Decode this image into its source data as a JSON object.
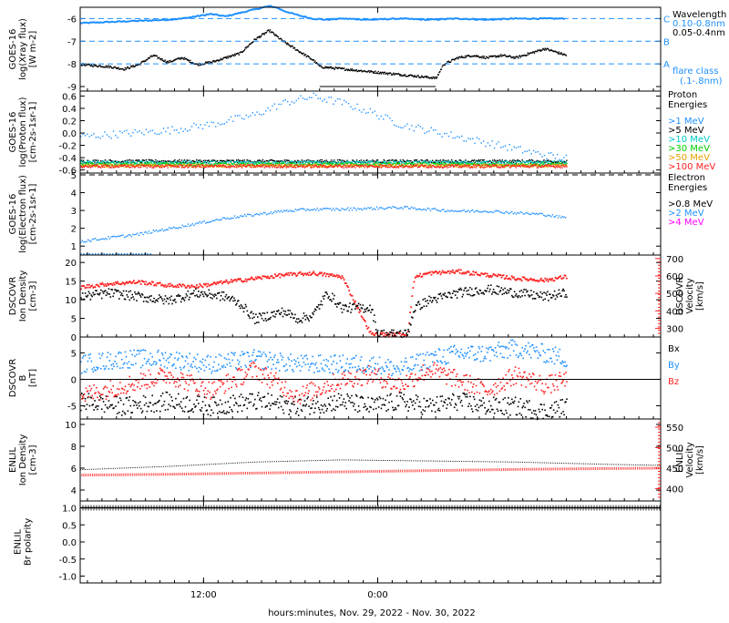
{
  "chart_data": [
    {
      "type": "line",
      "panel": "goes-xray",
      "ylabel": [
        "GOES-16",
        "log(Xray flux)",
        "[W m-2]"
      ],
      "yticks": [
        "-6",
        "-7",
        "-8",
        "-9"
      ],
      "ylim": [
        -9.2,
        -5.5
      ],
      "flare_classes": [
        {
          "label": "C",
          "value": -6
        },
        {
          "label": "B",
          "value": -7
        },
        {
          "label": "A",
          "value": -8
        }
      ],
      "legend_title": "Wavelength",
      "series": [
        {
          "name": "0.10-0.8nm",
          "color": "#1e90ff",
          "x": [
            0,
            2,
            4,
            6,
            7,
            8,
            8.5,
            9,
            10,
            11,
            12,
            13,
            13.5,
            14,
            15,
            16,
            17,
            18,
            20,
            22,
            24,
            26,
            28,
            30,
            32,
            33.5
          ],
          "y": [
            -6.2,
            -6.15,
            -6.1,
            -6.05,
            -6.0,
            -5.9,
            -5.85,
            -5.8,
            -5.9,
            -5.75,
            -5.6,
            -5.45,
            -5.5,
            -5.65,
            -5.85,
            -6.0,
            -6.05,
            -6.0,
            -6.05,
            -6.0,
            -6.05,
            -6.0,
            -6.05,
            -6.0,
            -6.0,
            -6.0
          ]
        },
        {
          "name": "0.05-0.4nm",
          "color": "#000000",
          "x": [
            0,
            1,
            2,
            3,
            4,
            5,
            6,
            7,
            8,
            9,
            10,
            11,
            12,
            13,
            14,
            15,
            16,
            16.5,
            24.5,
            25,
            26,
            27,
            28,
            29,
            30,
            31,
            32,
            33.5
          ],
          "y": [
            -8.0,
            -8.05,
            -8.1,
            -8.2,
            -8.0,
            -7.6,
            -7.9,
            -7.7,
            -8.0,
            -7.9,
            -7.7,
            -7.5,
            -6.9,
            -6.5,
            -7.0,
            -7.4,
            -7.8,
            -8.1,
            -8.6,
            -8.0,
            -7.7,
            -7.6,
            -7.7,
            -7.6,
            -7.7,
            -7.5,
            -7.3,
            -7.6
          ]
        }
      ],
      "gap_line_y": -9.0,
      "extra_labels": [
        "flare class",
        "(.1-.8nm)"
      ]
    },
    {
      "type": "scatter",
      "panel": "goes-proton",
      "ylabel": [
        "GOES-16",
        "log(Proton flux)",
        "[cm-2s-1sr-1]"
      ],
      "yticks": [
        "0.6",
        "0.4",
        "0.2",
        "0.0",
        "-0.2",
        "-0.4",
        "-0.6"
      ],
      "ylim": [
        -0.65,
        0.68
      ],
      "legend_title": [
        "Proton",
        "Energies"
      ],
      "series": [
        {
          "name": ">1 MeV",
          "color": "#1e90ff",
          "x": [
            0,
            3,
            6,
            9,
            12,
            14,
            16,
            18,
            20,
            22,
            24,
            26,
            28,
            30,
            32,
            33.5
          ],
          "y": [
            -0.05,
            0.0,
            0.05,
            0.15,
            0.3,
            0.5,
            0.6,
            0.5,
            0.35,
            0.15,
            0.05,
            -0.05,
            -0.15,
            -0.25,
            -0.35,
            -0.4
          ]
        },
        {
          "name": ">5 MeV",
          "color": "#000000",
          "x": [
            0,
            33.5
          ],
          "y": [
            -0.45,
            -0.45
          ]
        },
        {
          "name": ">10 MeV",
          "color": "#00c8c8",
          "x": [
            0,
            33.5
          ],
          "y": [
            -0.47,
            -0.47
          ]
        },
        {
          "name": ">30 MeV",
          "color": "#00cc00",
          "x": [
            0,
            33.5
          ],
          "y": [
            -0.5,
            -0.5
          ]
        },
        {
          "name": ">50 MeV",
          "color": "#e8a000",
          "x": [
            0,
            33.5
          ],
          "y": [
            -0.52,
            -0.52
          ]
        },
        {
          "name": ">100 MeV",
          "color": "#ff2020",
          "x": [
            0,
            33.5
          ],
          "y": [
            -0.53,
            -0.53
          ]
        }
      ]
    },
    {
      "type": "scatter",
      "panel": "goes-electron",
      "ylabel": [
        "GOES-16",
        "log(Electron flux)",
        "[cm-2s-1sr-1]"
      ],
      "yticks": [
        "5",
        "4",
        "3",
        "2",
        "1"
      ],
      "ylim": [
        0.5,
        5.1
      ],
      "legend_title": [
        "Electron",
        "Energies"
      ],
      "ref_line": 5,
      "series": [
        {
          "name": ">0.8 MeV",
          "color": "#000000",
          "x": [],
          "y": []
        },
        {
          "name": ">2 MeV",
          "color": "#1e90ff",
          "x": [
            0,
            2,
            4,
            6,
            8,
            10,
            12,
            14,
            16,
            18,
            20,
            22,
            24,
            26,
            28,
            30,
            32,
            33.5
          ],
          "y": [
            1.3,
            1.5,
            1.7,
            2.0,
            2.3,
            2.6,
            2.8,
            3.0,
            3.1,
            3.1,
            3.15,
            3.2,
            3.1,
            3.0,
            3.0,
            2.9,
            2.8,
            2.6
          ]
        },
        {
          "name": ">4 MeV",
          "color": "#ff00ff",
          "x": [],
          "y": []
        }
      ],
      "low_series": {
        "x": [
          0,
          5
        ],
        "y": [
          0.5,
          0.5
        ]
      }
    },
    {
      "type": "scatter",
      "panel": "dscovr-plasma",
      "ylabel": [
        "DSCOVR",
        "Ion Density",
        "[cm-3]"
      ],
      "yticks": [
        "20",
        "15",
        "10",
        "5",
        "0"
      ],
      "ylim": [
        0,
        22
      ],
      "ylabel_right": [
        "DSCOVR",
        "Velocity",
        "[km/s]"
      ],
      "yticks_right": [
        "700",
        "600",
        "500",
        "400",
        "300"
      ],
      "ylim_right": [
        250,
        720
      ],
      "series": [
        {
          "name": "Density",
          "color": "#000000",
          "x": [
            0,
            2,
            4,
            6,
            8,
            10,
            11,
            12,
            13,
            14,
            15,
            16,
            17,
            18,
            19.5,
            20,
            20.5,
            22.5,
            23,
            24,
            25,
            26,
            28,
            30,
            32,
            33.5
          ],
          "y": [
            11,
            12,
            11,
            10,
            12,
            11,
            9,
            5,
            6,
            7,
            5,
            6,
            12,
            8,
            8,
            8,
            1,
            1,
            8,
            10,
            11,
            12,
            13,
            12,
            11,
            12
          ]
        },
        {
          "name": "Velocity",
          "color": "#ff2020",
          "x": [
            0,
            2,
            4,
            6,
            8,
            10,
            12,
            13,
            14,
            16,
            17,
            18,
            20,
            21,
            22.5,
            23,
            24,
            26,
            28,
            30,
            32,
            33.5
          ],
          "y": [
            540,
            560,
            570,
            550,
            545,
            570,
            590,
            600,
            610,
            620,
            610,
            600,
            270,
            270,
            270,
            600,
            620,
            630,
            610,
            590,
            580,
            600
          ]
        }
      ]
    },
    {
      "type": "scatter",
      "panel": "dscovr-mag",
      "ylabel": [
        "DSCOVR",
        "B",
        "[nT]"
      ],
      "yticks": [
        "5",
        "0",
        "-5"
      ],
      "ylim": [
        -7.5,
        8
      ],
      "legend": [
        {
          "name": "Bx",
          "color": "#000000"
        },
        {
          "name": "By",
          "color": "#1e90ff"
        },
        {
          "name": "Bz",
          "color": "#ff2020"
        }
      ],
      "series": [
        {
          "name": "Bx",
          "color": "#000000",
          "x": [
            0,
            3,
            6,
            9,
            12,
            15,
            18,
            20,
            22,
            24,
            26,
            28,
            30,
            32,
            33.5
          ],
          "y": [
            -4,
            -5,
            -4,
            -5,
            -4,
            -5,
            -4,
            -5,
            -4,
            -5,
            -4,
            -5,
            -5,
            -6,
            -5
          ]
        },
        {
          "name": "By",
          "color": "#1e90ff",
          "x": [
            0,
            3,
            6,
            9,
            12,
            15,
            18,
            20,
            22,
            24,
            26,
            28,
            30,
            32,
            33.5
          ],
          "y": [
            3,
            4,
            4,
            3,
            4,
            3,
            3,
            3,
            2,
            4,
            5,
            5,
            6,
            5,
            4
          ]
        },
        {
          "name": "Bz",
          "color": "#ff2020",
          "x": [
            0,
            3,
            6,
            9,
            12,
            15,
            18,
            20,
            22,
            24,
            26,
            28,
            30,
            32,
            33.5
          ],
          "y": [
            -3,
            -1,
            1,
            -2,
            2,
            -3,
            0,
            1,
            -1,
            2,
            0,
            -2,
            1,
            -1,
            0
          ]
        }
      ]
    },
    {
      "type": "line",
      "panel": "enlil-plasma",
      "ylabel": [
        "ENLIL",
        "Ion Density",
        "[cm-3]"
      ],
      "yticks": [
        "10",
        "8",
        "6",
        "4"
      ],
      "ylim": [
        3,
        10.5
      ],
      "ylabel_right": [
        "ENLIL",
        "Velocity",
        "[km/s]"
      ],
      "yticks_right": [
        "550",
        "500",
        "450",
        "400"
      ],
      "ylim_right": [
        370,
        570
      ],
      "series": [
        {
          "name": "Density",
          "color": "#000000",
          "x": [
            0,
            6,
            12,
            18,
            24,
            30,
            36,
            40
          ],
          "y": [
            5.9,
            6.2,
            6.6,
            6.8,
            6.7,
            6.6,
            6.4,
            6.3
          ]
        },
        {
          "name": "Velocity",
          "color": "#ff2020",
          "x": [
            0,
            6,
            12,
            18,
            24,
            30,
            36,
            40
          ],
          "y": [
            433,
            435,
            438,
            441,
            444,
            447,
            449,
            450
          ]
        }
      ]
    },
    {
      "type": "line",
      "panel": "enlil-polarity",
      "ylabel": [
        "ENLIL",
        "Br polarity"
      ],
      "yticks": [
        "1.0",
        "0.5",
        "0.0",
        "-0.5",
        "-1.0"
      ],
      "ylim": [
        -1.2,
        1.2
      ],
      "series": [
        {
          "name": "Br polarity",
          "color": "#000000",
          "x": [
            0,
            40
          ],
          "y": [
            1.0,
            1.0
          ]
        }
      ]
    }
  ],
  "xaxis": {
    "ticks": [
      "12:00",
      "0:00"
    ],
    "tick_hours": [
      12,
      24
    ],
    "range_hours": [
      3.5,
      43.5
    ],
    "label": "hours:minutes, Nov. 29, 2022 - Nov. 30, 2022"
  }
}
